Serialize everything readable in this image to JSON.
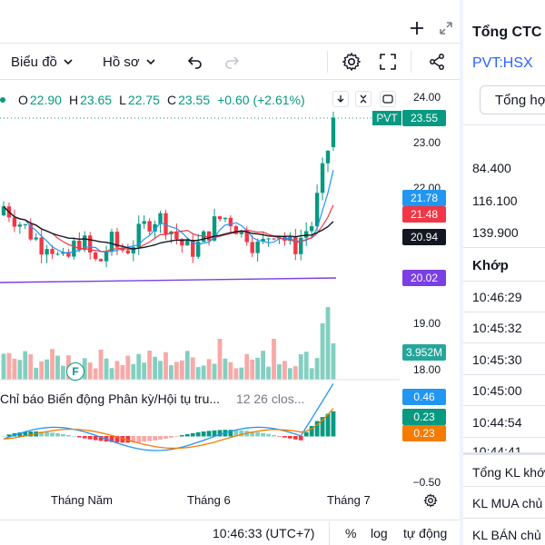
{
  "toolbar": {
    "chart_label": "Biểu đồ",
    "profile_label": "Hồ sơ"
  },
  "ohlc": {
    "o_label": "O",
    "o": "22.90",
    "h_label": "H",
    "h": "23.65",
    "l_label": "L",
    "l": "22.75",
    "c_label": "C",
    "c": "23.55",
    "change": "+0.60 (+2.61%)"
  },
  "price_scale": {
    "ticks": [
      "24.00",
      "23.00",
      "22.00",
      "19.00",
      "18.00",
      "−0.50"
    ],
    "symbol_tag": "PVT",
    "last_price": "23.55",
    "ma_blue": "21.78",
    "ma_red": "21.48",
    "ma_black": "20.94",
    "ma_purple": "20.02",
    "volume": "3.952M",
    "macd": "0.46",
    "signal": "0.23",
    "hist": "0.23"
  },
  "indicator": {
    "title": "Chỉ báo Biến động Phân kỳ/Hội tụ tru...",
    "params": "12 26 clos..."
  },
  "time_axis": {
    "labels": [
      "Tháng Năm",
      "Tháng 6",
      "Tháng 7"
    ]
  },
  "bottom_bar": {
    "time": "10:46:33 (UTC+7)",
    "percent": "%",
    "log": "log",
    "auto": "tự động"
  },
  "side": {
    "title": "Tổng CTC",
    "symbol": "PVT:HSX",
    "tab_button": "Tổng hợ",
    "levels": [
      "84.400",
      "116.100",
      "139.900"
    ],
    "match_header": "Khớp",
    "times": [
      "10:46:29",
      "10:45:32",
      "10:45:30",
      "10:45:00",
      "10:44:54",
      "10:44:41"
    ],
    "summary": [
      "Tổng KL khớ",
      "KL MUA chủ",
      "KL BÁN chủ"
    ]
  },
  "colors": {
    "up": "#089981",
    "down": "#f23645",
    "ma_blue": "#2196f3",
    "ma_red": "#f23645",
    "ma_black": "#131722",
    "ma_purple": "#7b3fe4",
    "vol_up": "#82cfc0",
    "vol_down": "#f7a9a7",
    "macd_orange": "#f57c00",
    "accent": "#2962ff"
  }
}
